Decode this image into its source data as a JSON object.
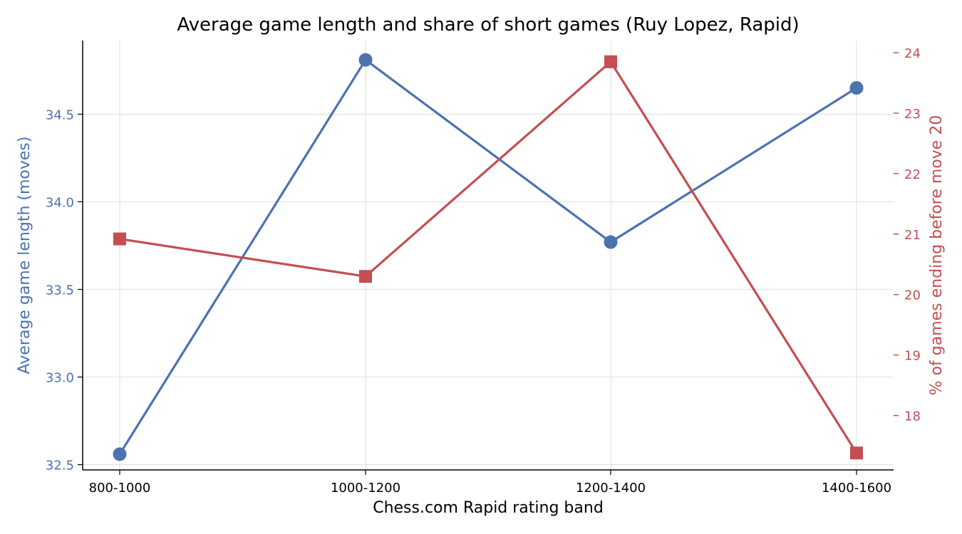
{
  "chart_data": {
    "type": "line",
    "title": "Average game length and share of short games (Ruy Lopez, Rapid)",
    "xlabel": "Chess.com Rapid rating band",
    "categories": [
      "800-1000",
      "1000-1200",
      "1200-1400",
      "1400-1600"
    ],
    "grid": true,
    "left_axis": {
      "label": "Average game length (moves)",
      "ylim": [
        32.47,
        34.92
      ],
      "ticks": [
        32.5,
        33.0,
        33.5,
        34.0,
        34.5
      ],
      "tick_labels": [
        "32.5",
        "33.0",
        "33.5",
        "34.0",
        "34.5"
      ],
      "color": "#4c72b0"
    },
    "right_axis": {
      "label": "% of games ending before move 20",
      "ylim": [
        17.1,
        24.2
      ],
      "ticks": [
        18,
        19,
        20,
        21,
        22,
        23,
        24
      ],
      "tick_labels": [
        "18",
        "19",
        "20",
        "21",
        "22",
        "23",
        "24"
      ],
      "color": "#c44e52"
    },
    "series": [
      {
        "axis": "left",
        "values": [
          32.56,
          34.81,
          33.77,
          34.65
        ],
        "color": "#4c72b0",
        "marker": "circle"
      },
      {
        "axis": "right",
        "values": [
          20.92,
          20.3,
          23.85,
          17.38
        ],
        "color": "#c44e52",
        "marker": "square"
      }
    ]
  }
}
